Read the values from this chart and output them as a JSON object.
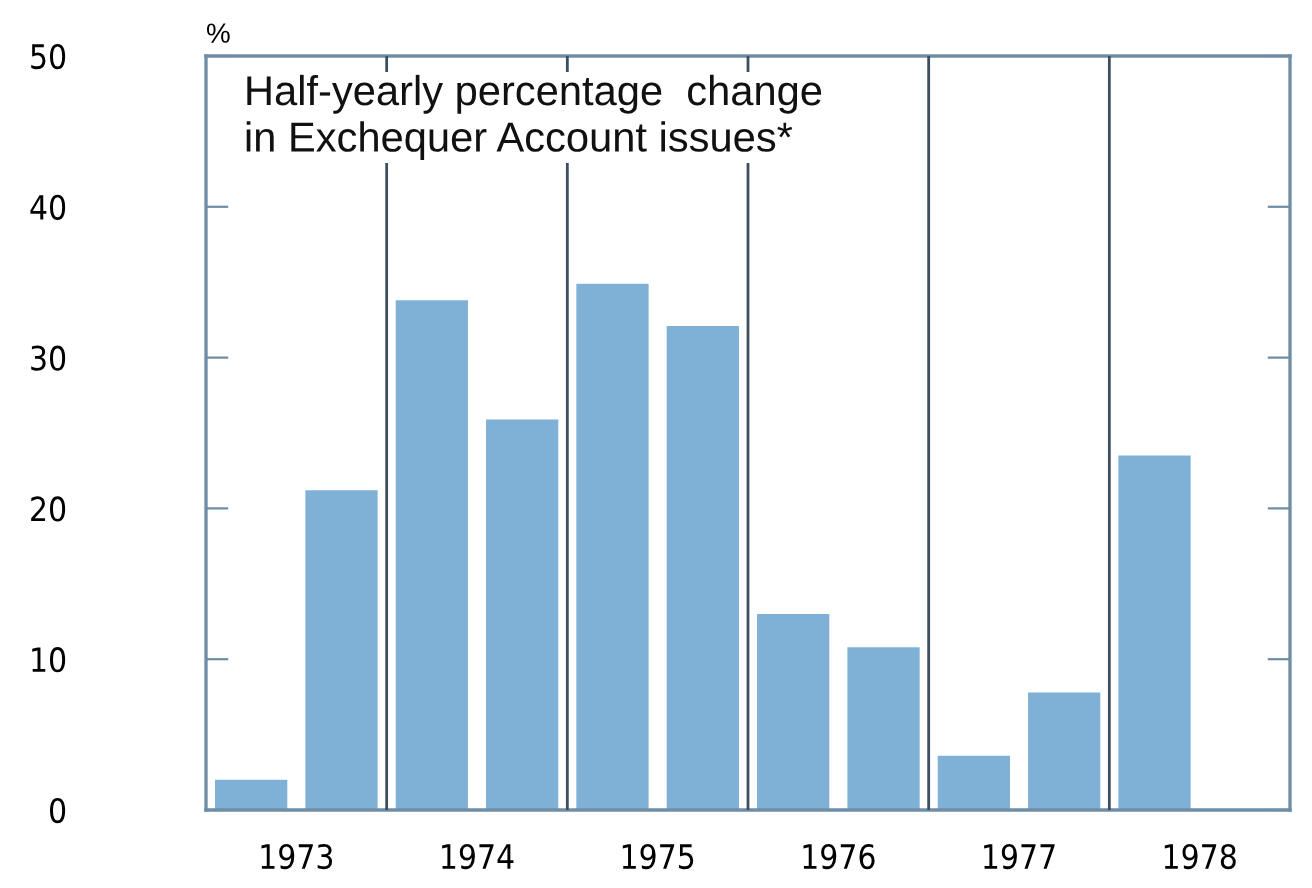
{
  "chart_data": {
    "type": "bar",
    "title": "Half-yearly percentage  change\nin Exchequer Account issues*",
    "ylabel": "%",
    "x": [
      1973.25,
      1973.75,
      1974.25,
      1974.75,
      1975.25,
      1975.75,
      1976.25,
      1976.75,
      1977.25,
      1977.75,
      1978.25
    ],
    "values": [
      2,
      21.2,
      33.8,
      25.9,
      34.9,
      32.1,
      13.0,
      10.8,
      3.6,
      7.8,
      23.5
    ],
    "color": "#7fb0d6",
    "xlim": [
      1973,
      1979
    ],
    "xticks": [
      {
        "value": 1973.5,
        "label": "1973"
      },
      {
        "value": 1974.5,
        "label": "1974"
      },
      {
        "value": 1975.5,
        "label": "1975"
      },
      {
        "value": 1976.5,
        "label": "1976"
      },
      {
        "value": 1977.5,
        "label": "1977"
      },
      {
        "value": 1978.5,
        "label": "1978"
      }
    ],
    "ylim": [
      0,
      50
    ],
    "yticks": [
      0,
      10,
      20,
      30,
      40,
      50
    ],
    "ref_lines": [
      {
        "axis": "x",
        "value": 1974,
        "color": "#3d4f5e"
      },
      {
        "axis": "x",
        "value": 1975,
        "color": "#3d4f5e"
      },
      {
        "axis": "x",
        "value": 1976,
        "color": "#3d4f5e"
      },
      {
        "axis": "x",
        "value": 1977,
        "color": "#3d4f5e"
      },
      {
        "axis": "x",
        "value": 1978,
        "color": "#3d4f5e"
      }
    ],
    "grid": false,
    "legend": false
  }
}
